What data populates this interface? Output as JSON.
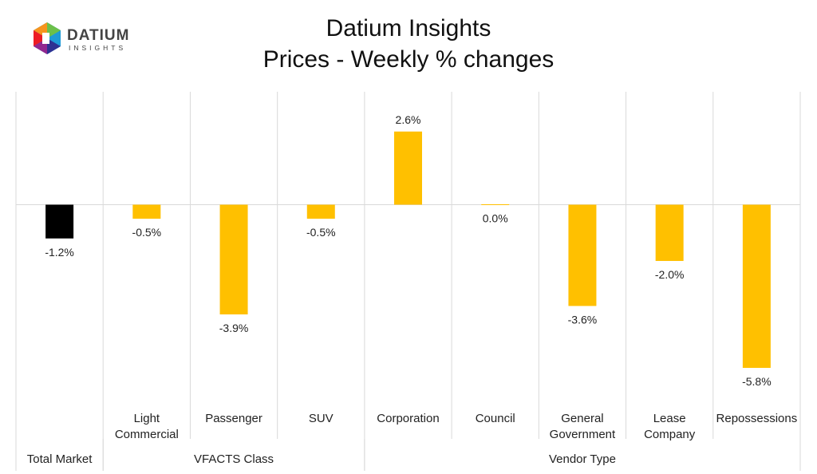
{
  "header": {
    "title_line1": "Datium Insights",
    "title_line2": "Prices - Weekly % changes"
  },
  "logo": {
    "word1": "DATIUM",
    "word2": "INSIGHTS"
  },
  "colors": {
    "highlight_bar": "#000000",
    "bar": "#FFC000",
    "grid": "#d9d9d9",
    "logo_text": "#444444"
  },
  "chart_data": {
    "type": "bar",
    "title": "Prices - Weekly % changes",
    "categories": [
      "Total Market",
      "Light Commercial",
      "Passenger",
      "SUV",
      "Corporation",
      "Council",
      "General Government",
      "Lease Company",
      "Repossessions"
    ],
    "category_label_lines": [
      [
        ""
      ],
      [
        "Light",
        "Commercial"
      ],
      [
        "Passenger"
      ],
      [
        "SUV"
      ],
      [
        "Corporation"
      ],
      [
        "Council"
      ],
      [
        "General",
        "Government"
      ],
      [
        "Lease",
        "Company"
      ],
      [
        "Repossessions"
      ]
    ],
    "groups": [
      {
        "name": "Total Market",
        "categories": [
          "Total Market"
        ]
      },
      {
        "name": "VFACTS Class",
        "categories": [
          "Light Commercial",
          "Passenger",
          "SUV"
        ]
      },
      {
        "name": "Vendor Type",
        "categories": [
          "Corporation",
          "Council",
          "General Government",
          "Lease Company",
          "Repossessions"
        ]
      }
    ],
    "values": [
      -1.2,
      -0.5,
      -3.9,
      -0.5,
      2.6,
      0.0,
      -3.6,
      -2.0,
      -5.8
    ],
    "data_labels": [
      "-1.2%",
      "-0.5%",
      "-3.9%",
      "-0.5%",
      "2.6%",
      "0.0%",
      "-3.6%",
      "-2.0%",
      "-5.8%"
    ],
    "highlight_category": "Total Market",
    "ylim": [
      -7,
      4
    ],
    "grid": "vertical separators",
    "legend": "none"
  }
}
